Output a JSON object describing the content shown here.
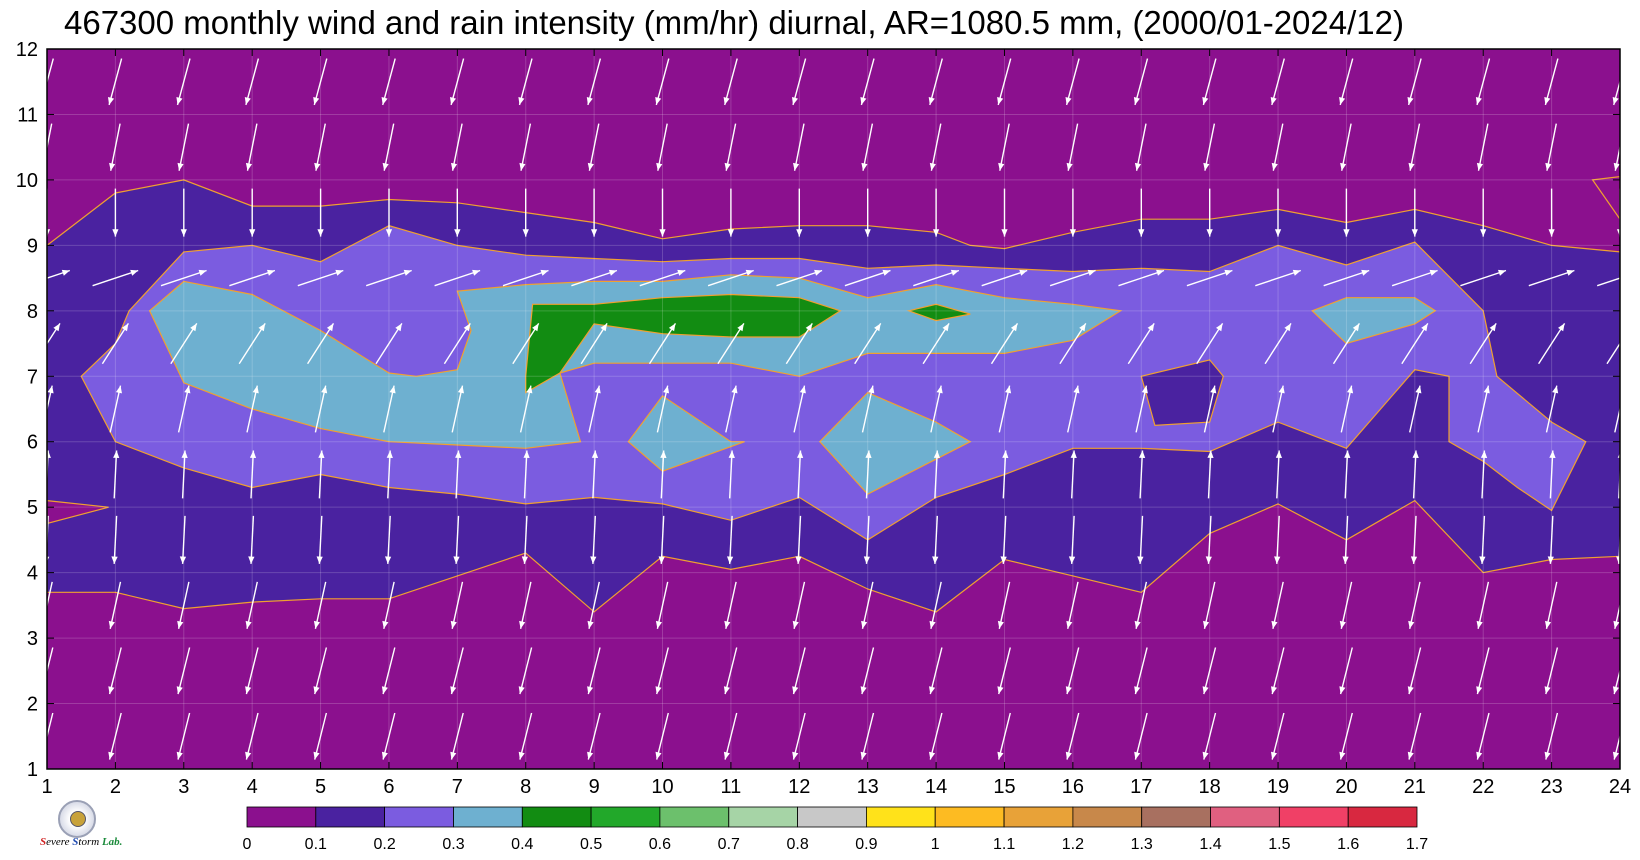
{
  "title": "467300 monthly wind and rain intensity (mm/hr) diurnal, AR=1080.5 mm, (2000/01-2024/12)",
  "logo": {
    "parts": [
      "S",
      "evere ",
      "S",
      "torm ",
      "Lab."
    ]
  },
  "chart_data": {
    "type": "heatmap",
    "xlabel": "",
    "ylabel": "",
    "xlim": [
      1,
      24
    ],
    "ylim": [
      1,
      12
    ],
    "x_ticks": [
      1,
      2,
      3,
      4,
      5,
      6,
      7,
      8,
      9,
      10,
      11,
      12,
      13,
      14,
      15,
      16,
      17,
      18,
      19,
      20,
      21,
      22,
      23,
      24
    ],
    "y_ticks": [
      1,
      2,
      3,
      4,
      5,
      6,
      7,
      8,
      9,
      10,
      11,
      12
    ],
    "grid": true,
    "colorbar": {
      "levels": [
        "0",
        "0.1",
        "0.2",
        "0.3",
        "0.4",
        "0.5",
        "0.6",
        "0.7",
        "0.8",
        "0.9",
        "1",
        "1.1",
        "1.2",
        "1.3",
        "1.4",
        "1.5",
        "1.6",
        "1.7"
      ],
      "colors": [
        "#8b108e",
        "#4a22a0",
        "#7b5ce0",
        "#6eb0d0",
        "#128c12",
        "#22a82a",
        "#6cc06c",
        "#a6d4a6",
        "#c8c8c8",
        "#ffe21a",
        "#fdbb22",
        "#e8a238",
        "#c8884a",
        "#a87060",
        "#e06080",
        "#f04066",
        "#d82840"
      ]
    },
    "contours": [
      {
        "level": 0.1,
        "color": "#4a22a0",
        "points": [
          [
            1,
            9.0
          ],
          [
            2,
            9.8
          ],
          [
            3,
            10.0
          ],
          [
            4,
            9.6
          ],
          [
            5,
            9.6
          ],
          [
            6,
            9.7
          ],
          [
            7,
            9.65
          ],
          [
            8,
            9.5
          ],
          [
            9,
            9.35
          ],
          [
            10,
            9.1
          ],
          [
            11,
            9.25
          ],
          [
            12,
            9.3
          ],
          [
            13,
            9.3
          ],
          [
            14,
            9.2
          ],
          [
            14.5,
            9.0
          ],
          [
            15,
            8.95
          ],
          [
            16,
            9.2
          ],
          [
            17,
            9.4
          ],
          [
            18,
            9.4
          ],
          [
            19,
            9.55
          ],
          [
            20,
            9.35
          ],
          [
            21,
            9.55
          ],
          [
            22,
            9.3
          ],
          [
            23,
            9.0
          ],
          [
            24,
            8.9
          ],
          [
            24,
            4.25
          ],
          [
            23,
            4.2
          ],
          [
            22,
            4.0
          ],
          [
            21,
            5.1
          ],
          [
            20,
            4.5
          ],
          [
            19,
            5.05
          ],
          [
            18,
            4.6
          ],
          [
            17,
            3.7
          ],
          [
            16,
            3.95
          ],
          [
            15,
            4.2
          ],
          [
            14,
            3.4
          ],
          [
            13,
            3.75
          ],
          [
            12,
            4.25
          ],
          [
            11,
            4.05
          ],
          [
            10,
            4.25
          ],
          [
            9,
            3.4
          ],
          [
            8,
            4.3
          ],
          [
            7,
            3.95
          ],
          [
            6,
            3.6
          ],
          [
            5,
            3.6
          ],
          [
            4,
            3.55
          ],
          [
            3,
            3.45
          ],
          [
            2,
            3.7
          ],
          [
            1,
            3.7
          ]
        ]
      },
      {
        "level": 0.2,
        "color": "#7b5ce0",
        "points": [
          [
            1.5,
            7.0
          ],
          [
            2,
            7.5
          ],
          [
            2.2,
            8.0
          ],
          [
            3,
            8.9
          ],
          [
            4,
            9.0
          ],
          [
            5,
            8.75
          ],
          [
            6,
            9.3
          ],
          [
            7,
            9.0
          ],
          [
            8,
            8.85
          ],
          [
            9,
            8.8
          ],
          [
            10,
            8.75
          ],
          [
            11,
            8.8
          ],
          [
            12,
            8.8
          ],
          [
            13,
            8.65
          ],
          [
            14,
            8.7
          ],
          [
            15,
            8.65
          ],
          [
            16,
            8.6
          ],
          [
            17,
            8.65
          ],
          [
            18,
            8.6
          ],
          [
            19,
            9.0
          ],
          [
            20,
            8.7
          ],
          [
            21,
            9.05
          ],
          [
            22,
            8.0
          ],
          [
            22.2,
            7.0
          ],
          [
            23,
            6.3
          ],
          [
            23.5,
            6.0
          ],
          [
            23,
            4.95
          ],
          [
            22.5,
            5.3
          ],
          [
            22,
            5.7
          ],
          [
            21.5,
            6.0
          ],
          [
            21.5,
            7.0
          ],
          [
            21,
            7.1
          ],
          [
            20.5,
            6.5
          ],
          [
            20,
            5.9
          ],
          [
            19,
            6.3
          ],
          [
            18,
            5.85
          ],
          [
            17,
            5.9
          ],
          [
            16,
            5.9
          ],
          [
            15,
            5.5
          ],
          [
            14,
            5.15
          ],
          [
            13,
            4.5
          ],
          [
            12,
            5.15
          ],
          [
            11,
            4.8
          ],
          [
            10,
            5.05
          ],
          [
            9,
            5.15
          ],
          [
            8,
            5.05
          ],
          [
            7,
            5.2
          ],
          [
            6,
            5.3
          ],
          [
            5,
            5.5
          ],
          [
            4,
            5.3
          ],
          [
            3,
            5.6
          ],
          [
            2,
            6.0
          ],
          [
            1.5,
            7.0
          ]
        ]
      },
      {
        "level": 0.3,
        "color": "#6eb0d0",
        "points": [
          [
            2.5,
            8.0
          ],
          [
            3,
            8.45
          ],
          [
            4,
            8.25
          ],
          [
            5,
            7.7
          ],
          [
            6,
            7.05
          ],
          [
            6.4,
            7.0
          ],
          [
            7,
            7.1
          ],
          [
            7.2,
            7.7
          ],
          [
            7,
            8.3
          ],
          [
            8,
            8.4
          ],
          [
            9,
            8.45
          ],
          [
            10,
            8.45
          ],
          [
            11,
            8.55
          ],
          [
            12,
            8.5
          ],
          [
            13,
            8.2
          ],
          [
            14,
            8.4
          ],
          [
            15,
            8.2
          ],
          [
            16,
            8.1
          ],
          [
            16.7,
            8.0
          ],
          [
            16,
            7.55
          ],
          [
            15,
            7.35
          ],
          [
            14,
            7.35
          ],
          [
            13,
            7.35
          ],
          [
            12,
            7.0
          ],
          [
            11,
            7.2
          ],
          [
            10,
            7.2
          ],
          [
            9,
            7.2
          ],
          [
            8.5,
            7.05
          ],
          [
            8.8,
            6.0
          ],
          [
            8,
            5.9
          ],
          [
            7,
            5.95
          ],
          [
            6,
            6.0
          ],
          [
            5,
            6.2
          ],
          [
            4,
            6.5
          ],
          [
            3,
            6.9
          ],
          [
            2.5,
            8.0
          ]
        ]
      },
      {
        "level": 0.4,
        "color": "#128c12",
        "points": [
          [
            8,
            7.0
          ],
          [
            8.1,
            8.1
          ],
          [
            9,
            8.1
          ],
          [
            10,
            8.2
          ],
          [
            11,
            8.25
          ],
          [
            12,
            8.2
          ],
          [
            12.6,
            8.0
          ],
          [
            12,
            7.6
          ],
          [
            11,
            7.6
          ],
          [
            10,
            7.65
          ],
          [
            9,
            7.8
          ],
          [
            8.5,
            7.05
          ],
          [
            8,
            6.75
          ],
          [
            8,
            7.0
          ]
        ]
      }
    ],
    "secondary_regions": [
      {
        "level": 0.3,
        "color": "#6eb0d0",
        "points": [
          [
            9.5,
            6.0
          ],
          [
            10,
            6.7
          ],
          [
            11,
            6.0
          ],
          [
            11.2,
            6.0
          ],
          [
            10,
            5.55
          ],
          [
            9.5,
            6.0
          ]
        ]
      },
      {
        "level": 0.3,
        "color": "#6eb0d0",
        "points": [
          [
            12.3,
            6.0
          ],
          [
            13,
            6.75
          ],
          [
            14,
            6.3
          ],
          [
            14.5,
            6.0
          ],
          [
            13,
            5.2
          ],
          [
            12.3,
            6.0
          ]
        ]
      },
      {
        "level": 0.3,
        "color": "#6eb0d0",
        "points": [
          [
            19.5,
            8.0
          ],
          [
            20,
            8.2
          ],
          [
            21,
            8.2
          ],
          [
            21.3,
            8.0
          ],
          [
            21,
            7.8
          ],
          [
            20,
            7.5
          ],
          [
            19.5,
            8.0
          ]
        ]
      },
      {
        "level": 0.4,
        "color": "#128c12",
        "points": [
          [
            13.6,
            8.0
          ],
          [
            14,
            8.1
          ],
          [
            14.5,
            7.95
          ],
          [
            14,
            7.85
          ],
          [
            13.6,
            8.0
          ]
        ]
      },
      {
        "level": 0.1,
        "color": "#4a22a0",
        "points": [
          [
            17,
            7.0
          ],
          [
            18,
            7.25
          ],
          [
            18.2,
            7.0
          ],
          [
            18,
            6.3
          ],
          [
            17.2,
            6.25
          ],
          [
            17,
            7.0
          ]
        ]
      },
      {
        "level": 0.0,
        "color": "#8b108e",
        "points": [
          [
            1,
            5.1
          ],
          [
            1.9,
            5.0
          ],
          [
            1,
            4.75
          ]
        ]
      },
      {
        "level": 0.0,
        "color": "#8b108e",
        "points": [
          [
            23.6,
            10.0
          ],
          [
            24,
            9.4
          ],
          [
            24,
            10.05
          ]
        ]
      }
    ],
    "wind_vectors": {
      "x": [
        1,
        2,
        3,
        4,
        5,
        6,
        7,
        8,
        9,
        10,
        11,
        12,
        13,
        14,
        15,
        16,
        17,
        18,
        19,
        20,
        21,
        22,
        23,
        24
      ],
      "y": [
        1.5,
        2.5,
        3.5,
        4.5,
        5.5,
        6.5,
        7.5,
        8.5,
        9.5,
        10.5,
        11.5
      ],
      "u": [
        -0.25,
        -0.25,
        -0.22,
        -0.05,
        0.05,
        0.22,
        0.45,
        0.6,
        0.0,
        -0.2,
        -0.27
      ],
      "v": [
        -1.0,
        -1.0,
        -1.0,
        -1.0,
        1.0,
        1.0,
        0.7,
        0.2,
        -1.0,
        -1.0,
        -1.0
      ]
    }
  }
}
